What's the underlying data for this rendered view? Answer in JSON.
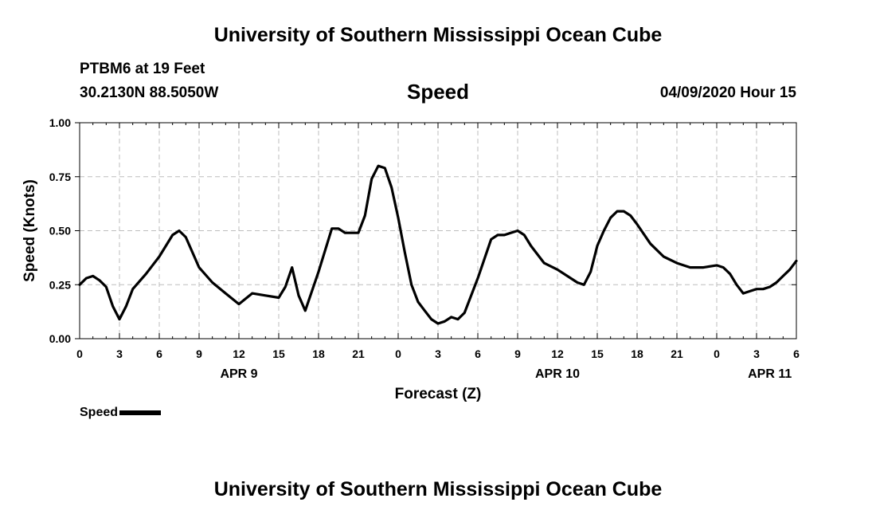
{
  "header": {
    "title": "University of Southern Mississippi Ocean Cube",
    "station": "PTBM6 at 19 Feet",
    "coordinates": "30.2130N 88.5050W",
    "chart_title": "Speed",
    "datetime": "04/09/2020 Hour 15"
  },
  "footer": {
    "title": "University of Southern Mississippi Ocean Cube"
  },
  "legend": {
    "label": "Speed"
  },
  "colors": {
    "line": "#000000",
    "grid": "#bdbdbd",
    "axis": "#000000"
  },
  "chart_data": {
    "type": "line",
    "title": "Speed",
    "xlabel": "Forecast (Z)",
    "ylabel": "Speed (Knots)",
    "xlim": [
      0,
      54
    ],
    "ylim": [
      0,
      1
    ],
    "grid": true,
    "legend_position": "bottom-left",
    "y_ticks": [
      {
        "value": 0,
        "label": "0.00"
      },
      {
        "value": 0.25,
        "label": "0.25"
      },
      {
        "value": 0.5,
        "label": "0.50"
      },
      {
        "value": 0.75,
        "label": "0.75"
      },
      {
        "value": 1,
        "label": "1.00"
      }
    ],
    "x_ticks": [
      {
        "value": 0,
        "label": "0"
      },
      {
        "value": 3,
        "label": "3"
      },
      {
        "value": 6,
        "label": "6"
      },
      {
        "value": 9,
        "label": "9"
      },
      {
        "value": 12,
        "label": "12"
      },
      {
        "value": 15,
        "label": "15"
      },
      {
        "value": 18,
        "label": "18"
      },
      {
        "value": 21,
        "label": "21"
      },
      {
        "value": 24,
        "label": "0"
      },
      {
        "value": 27,
        "label": "3"
      },
      {
        "value": 30,
        "label": "6"
      },
      {
        "value": 33,
        "label": "9"
      },
      {
        "value": 36,
        "label": "12"
      },
      {
        "value": 39,
        "label": "15"
      },
      {
        "value": 42,
        "label": "18"
      },
      {
        "value": 45,
        "label": "21"
      },
      {
        "value": 48,
        "label": "0"
      },
      {
        "value": 51,
        "label": "3"
      },
      {
        "value": 54,
        "label": "6"
      }
    ],
    "day_labels": [
      {
        "value": 12,
        "label": "APR 9"
      },
      {
        "value": 36,
        "label": "APR 10"
      },
      {
        "value": 52,
        "label": "APR 11"
      }
    ],
    "series": [
      {
        "name": "Speed",
        "points": [
          [
            0,
            0.25
          ],
          [
            0.5,
            0.28
          ],
          [
            1,
            0.29
          ],
          [
            1.5,
            0.27
          ],
          [
            2,
            0.24
          ],
          [
            2.5,
            0.15
          ],
          [
            3,
            0.09
          ],
          [
            3.5,
            0.15
          ],
          [
            4,
            0.23
          ],
          [
            5,
            0.3
          ],
          [
            6,
            0.38
          ],
          [
            7,
            0.48
          ],
          [
            7.5,
            0.5
          ],
          [
            8,
            0.47
          ],
          [
            9,
            0.33
          ],
          [
            10,
            0.26
          ],
          [
            11,
            0.21
          ],
          [
            12,
            0.16
          ],
          [
            13,
            0.21
          ],
          [
            14,
            0.2
          ],
          [
            15,
            0.19
          ],
          [
            15.5,
            0.24
          ],
          [
            16,
            0.33
          ],
          [
            16.5,
            0.2
          ],
          [
            17,
            0.13
          ],
          [
            18,
            0.31
          ],
          [
            19,
            0.51
          ],
          [
            19.5,
            0.51
          ],
          [
            20,
            0.49
          ],
          [
            21,
            0.49
          ],
          [
            21.5,
            0.57
          ],
          [
            22,
            0.74
          ],
          [
            22.5,
            0.8
          ],
          [
            23,
            0.79
          ],
          [
            23.5,
            0.7
          ],
          [
            24,
            0.56
          ],
          [
            24.5,
            0.4
          ],
          [
            25,
            0.25
          ],
          [
            25.5,
            0.17
          ],
          [
            26,
            0.13
          ],
          [
            26.5,
            0.09
          ],
          [
            27,
            0.07
          ],
          [
            27.5,
            0.08
          ],
          [
            28,
            0.1
          ],
          [
            28.5,
            0.09
          ],
          [
            29,
            0.12
          ],
          [
            30,
            0.28
          ],
          [
            31,
            0.46
          ],
          [
            31.5,
            0.48
          ],
          [
            32,
            0.48
          ],
          [
            33,
            0.5
          ],
          [
            33.5,
            0.48
          ],
          [
            34,
            0.43
          ],
          [
            35,
            0.35
          ],
          [
            36,
            0.32
          ],
          [
            37,
            0.28
          ],
          [
            37.5,
            0.26
          ],
          [
            38,
            0.25
          ],
          [
            38.5,
            0.31
          ],
          [
            39,
            0.43
          ],
          [
            39.5,
            0.5
          ],
          [
            40,
            0.56
          ],
          [
            40.5,
            0.59
          ],
          [
            41,
            0.59
          ],
          [
            41.5,
            0.57
          ],
          [
            42,
            0.53
          ],
          [
            43,
            0.44
          ],
          [
            44,
            0.38
          ],
          [
            45,
            0.35
          ],
          [
            46,
            0.33
          ],
          [
            47,
            0.33
          ],
          [
            48,
            0.34
          ],
          [
            48.5,
            0.33
          ],
          [
            49,
            0.3
          ],
          [
            49.5,
            0.25
          ],
          [
            50,
            0.21
          ],
          [
            50.5,
            0.22
          ],
          [
            51,
            0.23
          ],
          [
            51.5,
            0.23
          ],
          [
            52,
            0.24
          ],
          [
            52.5,
            0.26
          ],
          [
            53,
            0.29
          ],
          [
            53.5,
            0.32
          ],
          [
            54,
            0.36
          ]
        ]
      }
    ]
  }
}
